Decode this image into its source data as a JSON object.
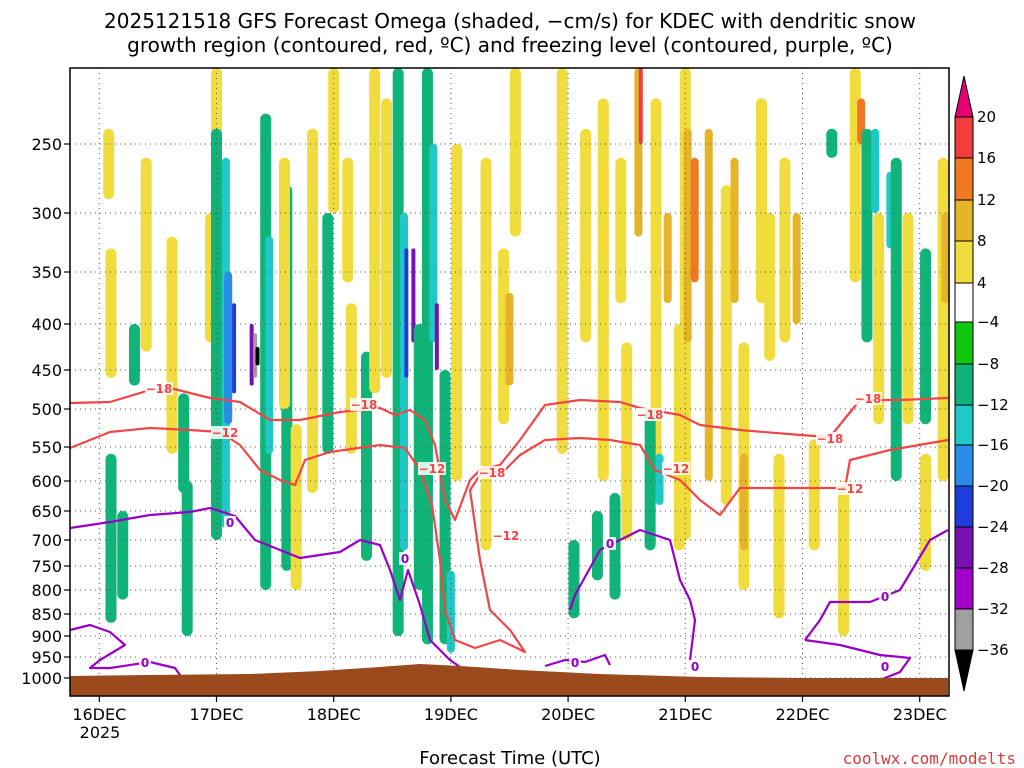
{
  "chart_data": {
    "type": "heatmap",
    "title_line1": "2025121518 GFS Forecast Omega (shaded, −cm/s) for KDEC with dendritic snow",
    "title_line2": "growth region (contoured, red, ºC) and freezing level (contoured, purple, ºC)",
    "xlabel": "Forecast Time (UTC)",
    "credit": "coolwx.com/modelts",
    "y_axis": {
      "label": "",
      "scale": "log-pressure",
      "ticks": [
        250,
        300,
        350,
        400,
        450,
        500,
        550,
        600,
        650,
        700,
        750,
        800,
        850,
        900,
        950,
        1000
      ],
      "tick_labels": [
        "250",
        "300",
        "350",
        "400",
        "450",
        "500",
        "550",
        "600",
        "650",
        "700",
        "750",
        "800",
        "850",
        "900",
        "950",
        "1000"
      ],
      "range": [
        200,
        1000
      ]
    },
    "x_axis": {
      "range_days": [
        15.75,
        23.25
      ],
      "ticks": [
        16,
        17,
        18,
        19,
        20,
        21,
        22,
        23
      ],
      "tick_labels": [
        "16DEC",
        "17DEC",
        "18DEC",
        "19DEC",
        "20DEC",
        "21DEC",
        "22DEC",
        "23DEC"
      ],
      "year_label": "2025"
    },
    "grid": true,
    "colorbar": {
      "levels": [
        20,
        16,
        12,
        8,
        4,
        -4,
        -8,
        -12,
        -16,
        -20,
        -24,
        -28,
        -32,
        -36
      ],
      "labels": [
        "20",
        "16",
        "12",
        "8",
        "4",
        "−4",
        "−8",
        "−12",
        "−16",
        "−20",
        "−24",
        "−28",
        "−32",
        "−36"
      ],
      "colors": [
        "#e60073",
        "#f03c3c",
        "#f07820",
        "#e6b428",
        "#f0dc3c",
        "#ffffff",
        "#10c810",
        "#10b478",
        "#20c8c8",
        "#2a8ce8",
        "#1e3cdc",
        "#7810b4",
        "#a000c8",
        "#a0a0a0",
        "#000000"
      ]
    },
    "contours": [
      {
        "name": "-18",
        "color": "#f04646",
        "labels": [
          "−18",
          "−18",
          "−18",
          "−18",
          "−18",
          "−18"
        ]
      },
      {
        "name": "-12",
        "color": "#f04646",
        "labels": [
          "−12",
          "−12",
          "−12",
          "−12",
          "−12"
        ]
      },
      {
        "name": "0",
        "color": "#9600c8",
        "labels": [
          "0",
          "0",
          "0",
          "0",
          "0",
          "0",
          "0",
          "0"
        ]
      }
    ],
    "terrain_color": "#9b4a1e",
    "omega_cells": [
      [
        16.08,
        240,
        290,
        4
      ],
      [
        16.1,
        330,
        460,
        4
      ],
      [
        16.4,
        260,
        430,
        4
      ],
      [
        16.62,
        320,
        560,
        4
      ],
      [
        16.1,
        560,
        870,
        -4
      ],
      [
        16.2,
        650,
        820,
        -4
      ],
      [
        16.3,
        400,
        470,
        -4
      ],
      [
        16.72,
        480,
        620,
        -4
      ],
      [
        16.75,
        600,
        900,
        -4
      ],
      [
        16.95,
        300,
        420,
        4
      ],
      [
        17.0,
        200,
        280,
        4
      ],
      [
        17.0,
        240,
        700,
        -4
      ],
      [
        17.08,
        260,
        680,
        -8
      ],
      [
        17.1,
        350,
        520,
        -12
      ],
      [
        17.15,
        380,
        480,
        -16
      ],
      [
        17.3,
        400,
        470,
        -20
      ],
      [
        17.33,
        410,
        460,
        -28
      ],
      [
        17.35,
        425,
        445,
        -36
      ],
      [
        17.42,
        230,
        800,
        -4
      ],
      [
        17.45,
        320,
        560,
        -8
      ],
      [
        17.6,
        280,
        760,
        -4
      ],
      [
        17.58,
        260,
        500,
        4
      ],
      [
        17.68,
        520,
        800,
        4
      ],
      [
        17.82,
        240,
        620,
        4
      ],
      [
        17.95,
        300,
        560,
        -4
      ],
      [
        18.0,
        200,
        300,
        4
      ],
      [
        18.12,
        260,
        360,
        4
      ],
      [
        18.15,
        380,
        560,
        4
      ],
      [
        18.28,
        430,
        740,
        -4
      ],
      [
        18.35,
        200,
        480,
        4
      ],
      [
        18.45,
        220,
        460,
        4
      ],
      [
        18.55,
        200,
        900,
        -4
      ],
      [
        18.6,
        300,
        720,
        -8
      ],
      [
        18.62,
        330,
        460,
        -16
      ],
      [
        18.68,
        330,
        420,
        -20
      ],
      [
        18.73,
        400,
        800,
        -4
      ],
      [
        18.8,
        200,
        920,
        -4
      ],
      [
        18.85,
        250,
        420,
        -8
      ],
      [
        18.88,
        380,
        450,
        -20
      ],
      [
        18.95,
        450,
        920,
        -4
      ],
      [
        19.0,
        760,
        940,
        -8
      ],
      [
        19.05,
        250,
        600,
        4
      ],
      [
        19.3,
        260,
        720,
        4
      ],
      [
        19.55,
        200,
        320,
        4
      ],
      [
        19.45,
        330,
        520,
        4
      ],
      [
        19.5,
        370,
        470,
        8
      ],
      [
        19.95,
        200,
        560,
        4
      ],
      [
        20.15,
        240,
        420,
        4
      ],
      [
        20.3,
        220,
        600,
        4
      ],
      [
        20.45,
        260,
        380,
        4
      ],
      [
        20.5,
        420,
        700,
        4
      ],
      [
        20.05,
        700,
        860,
        -4
      ],
      [
        20.25,
        650,
        780,
        -4
      ],
      [
        20.4,
        620,
        820,
        -4
      ],
      [
        20.6,
        200,
        320,
        8
      ],
      [
        20.62,
        200,
        250,
        16
      ],
      [
        20.75,
        220,
        580,
        4
      ],
      [
        20.85,
        300,
        380,
        8
      ],
      [
        20.95,
        400,
        720,
        4
      ],
      [
        20.7,
        500,
        720,
        -4
      ],
      [
        20.78,
        560,
        640,
        -8
      ],
      [
        21.0,
        200,
        700,
        4
      ],
      [
        21.02,
        240,
        420,
        8
      ],
      [
        21.08,
        260,
        360,
        12
      ],
      [
        21.2,
        240,
        600,
        8
      ],
      [
        21.35,
        280,
        640,
        4
      ],
      [
        21.42,
        260,
        380,
        8
      ],
      [
        21.5,
        420,
        800,
        4
      ],
      [
        21.5,
        560,
        720,
        8
      ],
      [
        21.65,
        220,
        380,
        4
      ],
      [
        21.72,
        300,
        440,
        4
      ],
      [
        21.85,
        260,
        420,
        4
      ],
      [
        21.95,
        300,
        400,
        8
      ],
      [
        21.8,
        560,
        860,
        4
      ],
      [
        22.1,
        540,
        720,
        4
      ],
      [
        22.35,
        600,
        900,
        4
      ],
      [
        22.45,
        200,
        360,
        4
      ],
      [
        22.5,
        220,
        250,
        12
      ],
      [
        22.65,
        300,
        520,
        4
      ],
      [
        22.9,
        300,
        520,
        4
      ],
      [
        22.25,
        240,
        260,
        -4
      ],
      [
        22.55,
        240,
        420,
        -4
      ],
      [
        22.62,
        240,
        300,
        -8
      ],
      [
        22.75,
        270,
        330,
        -8
      ],
      [
        22.8,
        260,
        600,
        -4
      ],
      [
        23.05,
        330,
        520,
        -4
      ],
      [
        23.05,
        560,
        760,
        4
      ],
      [
        23.2,
        260,
        600,
        4
      ],
      [
        23.22,
        300,
        380,
        8
      ]
    ]
  }
}
